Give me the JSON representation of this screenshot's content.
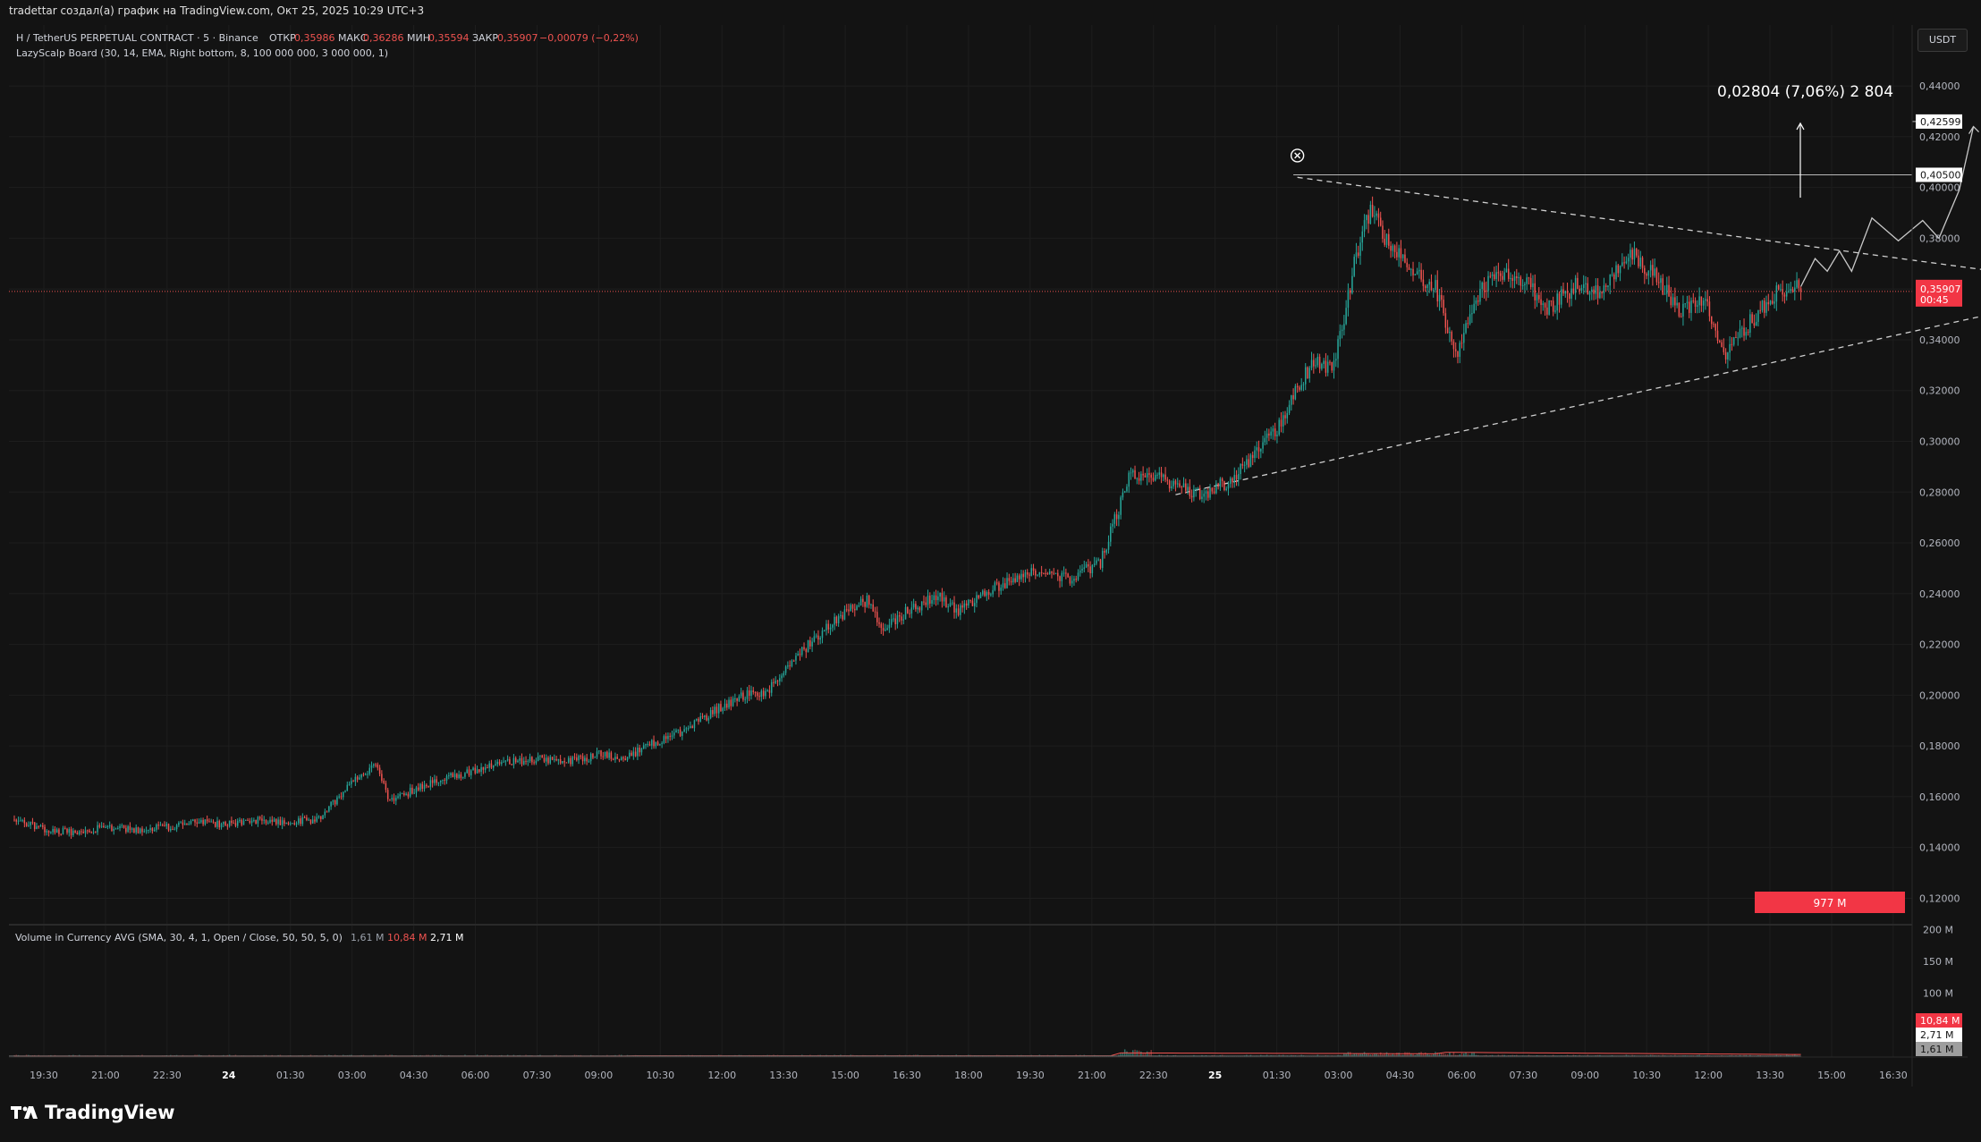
{
  "header": {
    "credit": "tradettar создал(а) график на TradingView.com, Окт 25, 2025 10:29 UTC+3"
  },
  "legend": {
    "symbol": "H / TetherUS PERPETUAL CONTRACT · 5 · Binance",
    "open_label": "ОТКР",
    "open_value": "0,35986",
    "high_label": "МАКС",
    "high_value": "0,36286",
    "low_label": "МИН",
    "low_value": "0,35594",
    "close_label": "ЗАКР",
    "close_value": "0,35907",
    "change": "−0,00079 (−0,22%)",
    "indicator": "LazyScalp Board (30, 14, EMA, Right bottom, 8, 100 000 000, 3 000 000, 1)"
  },
  "volume_legend": {
    "title": "Volume in Currency AVG (SMA, 30, 4, 1, Open / Close, 50, 50, 5, 0)",
    "v1": "1,61 M",
    "v2": "10,84 M",
    "v3": "2,71 M"
  },
  "currency": "USDT",
  "measure": {
    "label": "0,02804 (7,06%) 2 804"
  },
  "badge": {
    "label": "977 M",
    "color": "#f23645"
  },
  "price_tags": [
    {
      "label": "0,42599",
      "value": 0.42599,
      "style": "white"
    },
    {
      "label": "0,40500",
      "value": 0.405,
      "style": "white"
    },
    {
      "label": "0,35907",
      "sub": "00:45",
      "value": 0.35907,
      "style": "red"
    }
  ],
  "volume_tags": [
    {
      "label": "10,84 M",
      "value": 10.84,
      "style": "red"
    },
    {
      "label": "2,71 M",
      "value": 2.71,
      "style": "white"
    },
    {
      "label": "1,61 M",
      "value": 1.61,
      "style": "gray"
    }
  ],
  "colors": {
    "up": "#26a69a",
    "down": "#ef5350",
    "bg": "#131313",
    "grid": "#1e1e1e",
    "accent_red": "#f23645"
  },
  "brand": "TradingView",
  "chart_data": {
    "type": "candlestick",
    "timeframe": "5",
    "price_axis": {
      "ticks": [
        "0,44000",
        "0,42000",
        "0,40000",
        "0,38000",
        "0,36000",
        "0,34000",
        "0,32000",
        "0,30000",
        "0,28000",
        "0,26000",
        "0,24000",
        "0,22000",
        "0,20000",
        "0,18000",
        "0,16000",
        "0,14000",
        "0,12000"
      ],
      "tick_values": [
        0.44,
        0.42,
        0.4,
        0.38,
        0.36,
        0.34,
        0.32,
        0.3,
        0.28,
        0.26,
        0.24,
        0.22,
        0.2,
        0.18,
        0.16,
        0.14,
        0.12
      ],
      "range": [
        0.111,
        0.464
      ]
    },
    "volume_axis": {
      "ticks": [
        "200 M",
        "150 M",
        "100 M"
      ],
      "tick_values": [
        200,
        150,
        100
      ],
      "range": [
        0,
        206
      ]
    },
    "time_axis": {
      "ticks": [
        "19:30",
        "21:00",
        "22:30",
        "24",
        "01:30",
        "03:00",
        "04:30",
        "06:00",
        "07:30",
        "09:00",
        "10:30",
        "12:00",
        "13:30",
        "15:00",
        "16:30",
        "18:00",
        "19:30",
        "21:00",
        "22:30",
        "25",
        "01:30",
        "03:00",
        "04:30",
        "06:00",
        "07:30",
        "09:00",
        "10:30",
        "12:00",
        "13:30",
        "15:00",
        "16:30"
      ],
      "bold": [
        "24",
        "25"
      ]
    },
    "price_path": [
      [
        0,
        0.151
      ],
      [
        15,
        0.147
      ],
      [
        30,
        0.146
      ],
      [
        45,
        0.148
      ],
      [
        60,
        0.147
      ],
      [
        75,
        0.148
      ],
      [
        90,
        0.15
      ],
      [
        105,
        0.149
      ],
      [
        120,
        0.151
      ],
      [
        135,
        0.15
      ],
      [
        150,
        0.151
      ],
      [
        165,
        0.165
      ],
      [
        178,
        0.172
      ],
      [
        185,
        0.158
      ],
      [
        200,
        0.164
      ],
      [
        215,
        0.168
      ],
      [
        230,
        0.171
      ],
      [
        245,
        0.174
      ],
      [
        260,
        0.175
      ],
      [
        275,
        0.174
      ],
      [
        290,
        0.177
      ],
      [
        300,
        0.175
      ],
      [
        315,
        0.181
      ],
      [
        330,
        0.186
      ],
      [
        345,
        0.194
      ],
      [
        360,
        0.2
      ],
      [
        370,
        0.201
      ],
      [
        385,
        0.215
      ],
      [
        400,
        0.227
      ],
      [
        410,
        0.233
      ],
      [
        420,
        0.237
      ],
      [
        427,
        0.226
      ],
      [
        440,
        0.233
      ],
      [
        455,
        0.239
      ],
      [
        465,
        0.233
      ],
      [
        475,
        0.239
      ],
      [
        490,
        0.245
      ],
      [
        505,
        0.249
      ],
      [
        520,
        0.246
      ],
      [
        535,
        0.252
      ],
      [
        550,
        0.288
      ],
      [
        565,
        0.285
      ],
      [
        585,
        0.279
      ],
      [
        600,
        0.285
      ],
      [
        615,
        0.299
      ],
      [
        625,
        0.308
      ],
      [
        632,
        0.322
      ],
      [
        640,
        0.331
      ],
      [
        650,
        0.329
      ],
      [
        660,
        0.37
      ],
      [
        668,
        0.392
      ],
      [
        675,
        0.379
      ],
      [
        688,
        0.367
      ],
      [
        700,
        0.361
      ],
      [
        710,
        0.333
      ],
      [
        720,
        0.357
      ],
      [
        730,
        0.368
      ],
      [
        745,
        0.362
      ],
      [
        755,
        0.352
      ],
      [
        770,
        0.362
      ],
      [
        782,
        0.358
      ],
      [
        795,
        0.375
      ],
      [
        808,
        0.366
      ],
      [
        820,
        0.351
      ],
      [
        832,
        0.357
      ],
      [
        842,
        0.333
      ],
      [
        855,
        0.347
      ],
      [
        868,
        0.358
      ],
      [
        880,
        0.361
      ]
    ],
    "projection_path": [
      [
        880,
        0.361
      ],
      [
        887,
        0.372
      ],
      [
        893,
        0.367
      ],
      [
        899,
        0.375
      ],
      [
        905,
        0.367
      ],
      [
        915,
        0.388
      ],
      [
        928,
        0.379
      ],
      [
        940,
        0.387
      ],
      [
        948,
        0.38
      ],
      [
        958,
        0.399
      ],
      [
        965,
        0.424
      ]
    ],
    "trendlines": [
      {
        "from": [
          632,
          0.404
        ],
        "to": [
          985,
          0.366
        ],
        "style": "dashed"
      },
      {
        "from": [
          572,
          0.279
        ],
        "to": [
          990,
          0.353
        ],
        "style": "dashed"
      }
    ],
    "horizontal_lines": [
      {
        "value": 0.405,
        "from_x": 630
      },
      {
        "value": 0.42599,
        "from_x": 945
      }
    ],
    "high_marker": {
      "x": 632,
      "value": 0.4126
    },
    "current_price": 0.35907
  }
}
